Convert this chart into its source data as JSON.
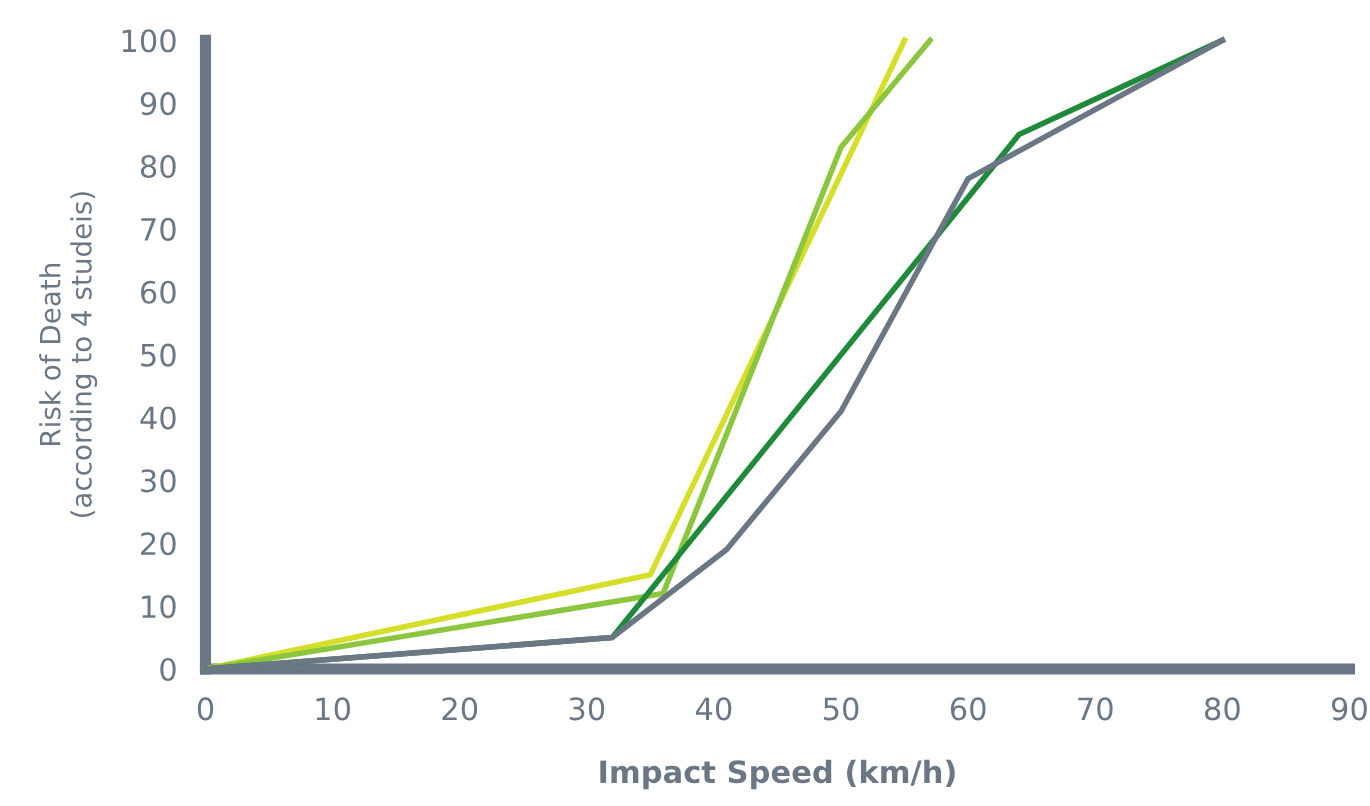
{
  "chart_data": {
    "type": "line",
    "xlabel": "Impact Speed (km/h)",
    "ylabel": "Risk of Death\n(according to 4 studeis)",
    "xlim": [
      0,
      90
    ],
    "xticks": [
      0,
      10,
      20,
      30,
      40,
      50,
      60,
      70,
      80,
      90
    ],
    "ylim": [
      0,
      100
    ],
    "yticks": [
      0,
      10,
      20,
      30,
      40,
      50,
      60,
      70,
      80,
      90,
      100
    ],
    "grid": false,
    "legend": false,
    "marker": "none",
    "line_style": "solid",
    "series": [
      {
        "color": "#d5df2a",
        "x": [
          0,
          35,
          55
        ],
        "values": [
          0,
          15,
          100
        ]
      },
      {
        "color": "#8cc63f",
        "x": [
          0,
          36,
          50,
          57
        ],
        "values": [
          0,
          12,
          83,
          100
        ]
      },
      {
        "color": "#1f8a3a",
        "x": [
          0,
          32,
          64,
          80
        ],
        "values": [
          0,
          5,
          85,
          100
        ]
      },
      {
        "color": "#6b7785",
        "x": [
          0,
          32,
          41,
          50,
          60,
          80
        ],
        "values": [
          0,
          5,
          19,
          41,
          78,
          100
        ]
      }
    ]
  }
}
